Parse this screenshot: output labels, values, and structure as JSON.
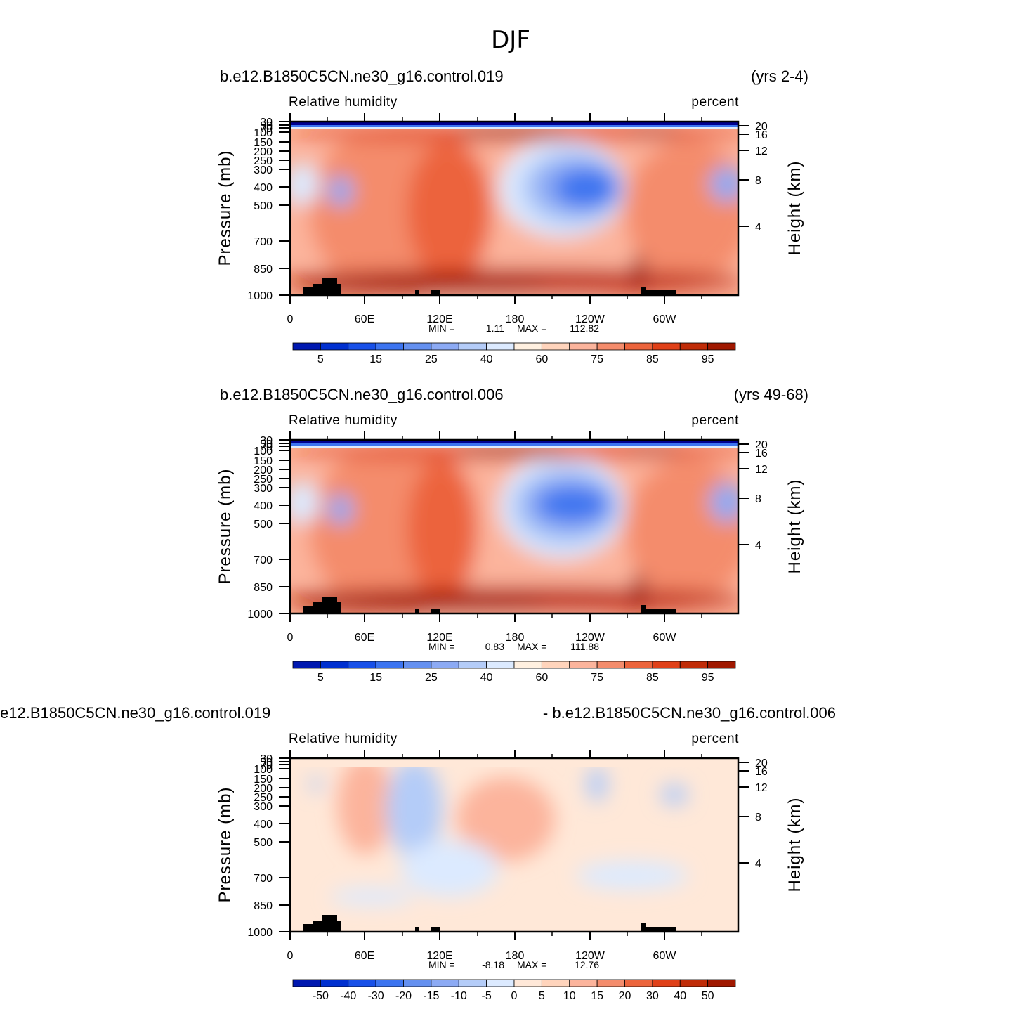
{
  "title": "DJF",
  "palette": {
    "rh": [
      "#00008f",
      "#0018b0",
      "#0030d0",
      "#1850e8",
      "#3c74f0",
      "#6490f0",
      "#8caaf4",
      "#b4ccf8",
      "#dceaff",
      "#fff0e0",
      "#ffd4bc",
      "#fcb49c",
      "#f48c6c",
      "#ec643c",
      "#e04018",
      "#c02c08",
      "#a01800",
      "#800000"
    ],
    "diff": [
      "#00008f",
      "#0018b0",
      "#0030d0",
      "#1850e8",
      "#3c74f0",
      "#6490f0",
      "#8caaf4",
      "#b4ccf8",
      "#dceaff",
      "#ffe8d8",
      "#ffd4bc",
      "#fcb49c",
      "#f48c6c",
      "#ec643c",
      "#e04018",
      "#c02c08",
      "#a01800",
      "#800000"
    ]
  },
  "chart_data": [
    {
      "type": "heatmap",
      "case_title": "b.e12.B1850C5CN.ne30_g16.control.019",
      "years": "(yrs 2-4)",
      "variable": "Relative  humidity",
      "units": "percent",
      "ylabel": "Pressure  (mb)",
      "ylabel_right": "Height  (km)",
      "x_ticks": [
        "0",
        "60E",
        "120E",
        "180",
        "120W",
        "60W"
      ],
      "y_ticks": [
        "30",
        "50",
        "70",
        "100",
        "150",
        "200",
        "250",
        "300",
        "400",
        "500",
        "700",
        "850",
        "1000"
      ],
      "y_right_ticks": [
        "20",
        "16",
        "12",
        "8",
        "4"
      ],
      "stats": {
        "min_label": "MIN =",
        "min": "1.11",
        "max_label": "MAX =",
        "max": "112.82"
      },
      "colorbar_labels": [
        "5",
        "15",
        "25",
        "40",
        "60",
        "75",
        "85",
        "95"
      ],
      "field": "rh",
      "min_value": 1.11,
      "max_value": 112.82
    },
    {
      "type": "heatmap",
      "case_title": "b.e12.B1850C5CN.ne30_g16.control.006",
      "years": "(yrs 49-68)",
      "variable": "Relative  humidity",
      "units": "percent",
      "ylabel": "Pressure  (mb)",
      "ylabel_right": "Height  (km)",
      "x_ticks": [
        "0",
        "60E",
        "120E",
        "180",
        "120W",
        "60W"
      ],
      "y_ticks": [
        "30",
        "50",
        "70",
        "100",
        "150",
        "200",
        "250",
        "300",
        "400",
        "500",
        "700",
        "850",
        "1000"
      ],
      "y_right_ticks": [
        "20",
        "16",
        "12",
        "8",
        "4"
      ],
      "stats": {
        "min_label": "MIN =",
        "min": "0.83",
        "max_label": "MAX =",
        "max": "111.88"
      },
      "colorbar_labels": [
        "5",
        "15",
        "25",
        "40",
        "60",
        "75",
        "85",
        "95"
      ],
      "field": "rh",
      "min_value": 0.83,
      "max_value": 111.88
    },
    {
      "type": "heatmap",
      "case_title": "e12.B1850C5CN.ne30_g16.control.019",
      "years": "- b.e12.B1850C5CN.ne30_g16.control.006",
      "variable": "Relative  humidity",
      "units": "percent",
      "ylabel": "Pressure  (mb)",
      "ylabel_right": "Height  (km)",
      "x_ticks": [
        "0",
        "60E",
        "120E",
        "180",
        "120W",
        "60W"
      ],
      "y_ticks": [
        "30",
        "50",
        "70",
        "100",
        "150",
        "200",
        "250",
        "300",
        "400",
        "500",
        "700",
        "850",
        "1000"
      ],
      "y_right_ticks": [
        "20",
        "16",
        "12",
        "8",
        "4"
      ],
      "stats": {
        "min_label": "MIN =",
        "min": "-8.18",
        "max_label": "MAX =",
        "max": "12.76"
      },
      "colorbar_labels": [
        "-50",
        "-40",
        "-30",
        "-20",
        "-15",
        "-10",
        "-5",
        "0",
        "5",
        "10",
        "15",
        "20",
        "30",
        "40",
        "50"
      ],
      "field": "diff",
      "min_value": -8.18,
      "max_value": 12.76
    }
  ]
}
